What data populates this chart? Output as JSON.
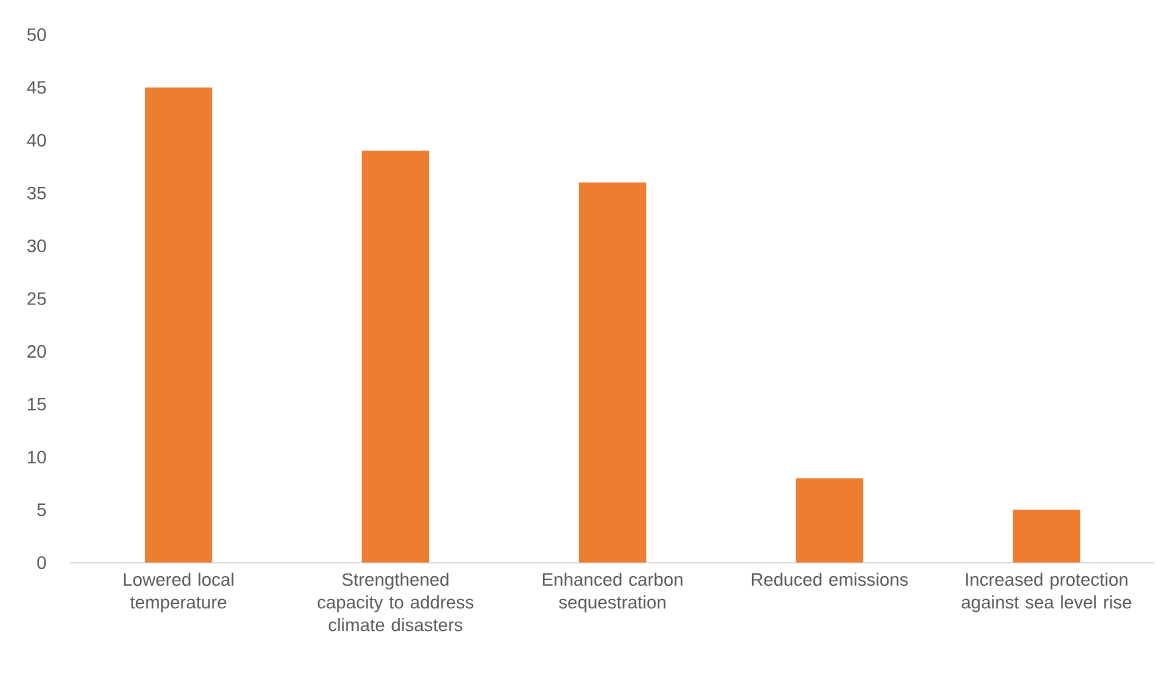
{
  "chart_data": {
    "type": "bar",
    "categories": [
      "Lowered local temperature",
      "Strengthened capacity to address climate disasters",
      "Enhanced carbon sequestration",
      "Reduced emissions",
      "Increased protection against sea level rise"
    ],
    "values": [
      45,
      39,
      36,
      8,
      5
    ],
    "color": "#ed7d31",
    "ylim": [
      0,
      50
    ],
    "yticks": [
      0,
      5,
      10,
      15,
      20,
      25,
      30,
      35,
      40,
      45,
      50
    ],
    "grid": false
  }
}
